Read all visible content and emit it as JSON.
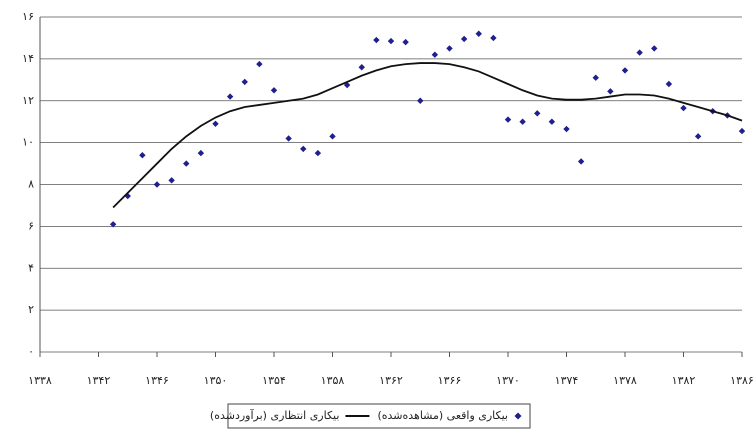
{
  "chart_data": {
    "type": "line",
    "x": [
      1343,
      1344,
      1345,
      1346,
      1347,
      1348,
      1349,
      1350,
      1351,
      1352,
      1353,
      1354,
      1355,
      1356,
      1357,
      1358,
      1359,
      1360,
      1361,
      1362,
      1363,
      1364,
      1365,
      1366,
      1367,
      1368,
      1369,
      1370,
      1371,
      1372,
      1373,
      1374,
      1375,
      1376,
      1377,
      1378,
      1379,
      1380,
      1381,
      1382,
      1383,
      1384,
      1385,
      1386
    ],
    "series": [
      {
        "name": "بیکاری واقعی (مشاهده‌شده)",
        "color": "#1f1f8f",
        "style": "markers",
        "values": [
          6.1,
          7.45,
          9.4,
          8.0,
          8.2,
          9.0,
          9.5,
          10.9,
          12.2,
          12.9,
          13.75,
          12.5,
          10.2,
          9.7,
          9.5,
          10.3,
          12.75,
          13.6,
          14.9,
          14.85,
          14.8,
          12.0,
          14.2,
          14.5,
          14.95,
          15.2,
          15.0,
          11.1,
          11.0,
          11.4,
          11.0,
          10.65,
          9.1,
          13.1,
          12.45,
          13.45,
          14.3,
          14.5,
          12.8,
          11.65,
          10.3,
          11.5,
          11.3,
          10.55
        ]
      },
      {
        "name": "بیکاری انتظاری (برآوردشده)",
        "color": "#111111",
        "style": "line",
        "values": [
          6.9,
          7.6,
          8.3,
          9.0,
          9.7,
          10.3,
          10.8,
          11.2,
          11.5,
          11.7,
          11.8,
          11.9,
          12.0,
          12.1,
          12.3,
          12.6,
          12.9,
          13.2,
          13.45,
          13.65,
          13.75,
          13.8,
          13.8,
          13.75,
          13.6,
          13.4,
          13.1,
          12.8,
          12.5,
          12.25,
          12.1,
          12.05,
          12.05,
          12.1,
          12.2,
          12.3,
          12.3,
          12.25,
          12.1,
          11.9,
          11.7,
          11.5,
          11.3,
          11.05
        ]
      }
    ],
    "xlim": [
      1338,
      1386
    ],
    "xticks": [
      {
        "value": 1338,
        "label": "۱۳۳۸"
      },
      {
        "value": 1342,
        "label": "۱۳۴۲"
      },
      {
        "value": 1346,
        "label": "۱۳۴۶"
      },
      {
        "value": 1350,
        "label": "۱۳۵۰"
      },
      {
        "value": 1354,
        "label": "۱۳۵۴"
      },
      {
        "value": 1358,
        "label": "۱۳۵۸"
      },
      {
        "value": 1362,
        "label": "۱۳۶۲"
      },
      {
        "value": 1366,
        "label": "۱۳۶۶"
      },
      {
        "value": 1370,
        "label": "۱۳۷۰"
      },
      {
        "value": 1374,
        "label": "۱۳۷۴"
      },
      {
        "value": 1378,
        "label": "۱۳۷۸"
      },
      {
        "value": 1382,
        "label": "۱۳۸۲"
      },
      {
        "value": 1386,
        "label": "۱۳۸۶"
      }
    ],
    "ylim": [
      0,
      16
    ],
    "yticks": [
      {
        "value": 0,
        "label": "۰"
      },
      {
        "value": 2,
        "label": "۲"
      },
      {
        "value": 4,
        "label": "۴"
      },
      {
        "value": 6,
        "label": "۶"
      },
      {
        "value": 8,
        "label": "۸"
      },
      {
        "value": 10,
        "label": "۱۰"
      },
      {
        "value": 12,
        "label": "۱۲"
      },
      {
        "value": 14,
        "label": "۱۴"
      },
      {
        "value": 16,
        "label": "۱۶"
      }
    ],
    "grid": true
  }
}
